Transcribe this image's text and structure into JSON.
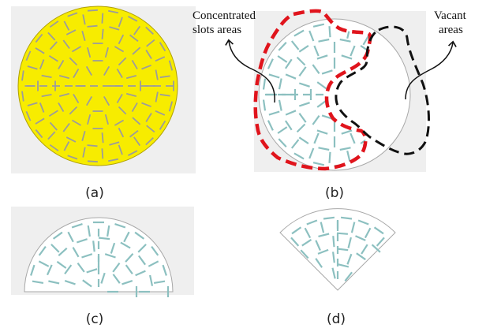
{
  "panels": [
    {
      "id": "a",
      "caption": "(a)"
    },
    {
      "id": "b",
      "caption": "(b)"
    },
    {
      "id": "c",
      "caption": "(c)"
    },
    {
      "id": "d",
      "caption": "(d)"
    }
  ],
  "annotations": {
    "left_line1": "Concentrated",
    "left_line2": "slots areas",
    "right_line1": "Vacant",
    "right_line2": "areas"
  },
  "colors": {
    "disk_fill": "#f7ec00",
    "disk_slot": "#9c9c9c",
    "slot": "#8cc0c0",
    "outline": "#a8a8a8",
    "concentrated_boundary": "#e0141c",
    "vacant_boundary": "#111111",
    "panel_bg": "#efefef"
  }
}
